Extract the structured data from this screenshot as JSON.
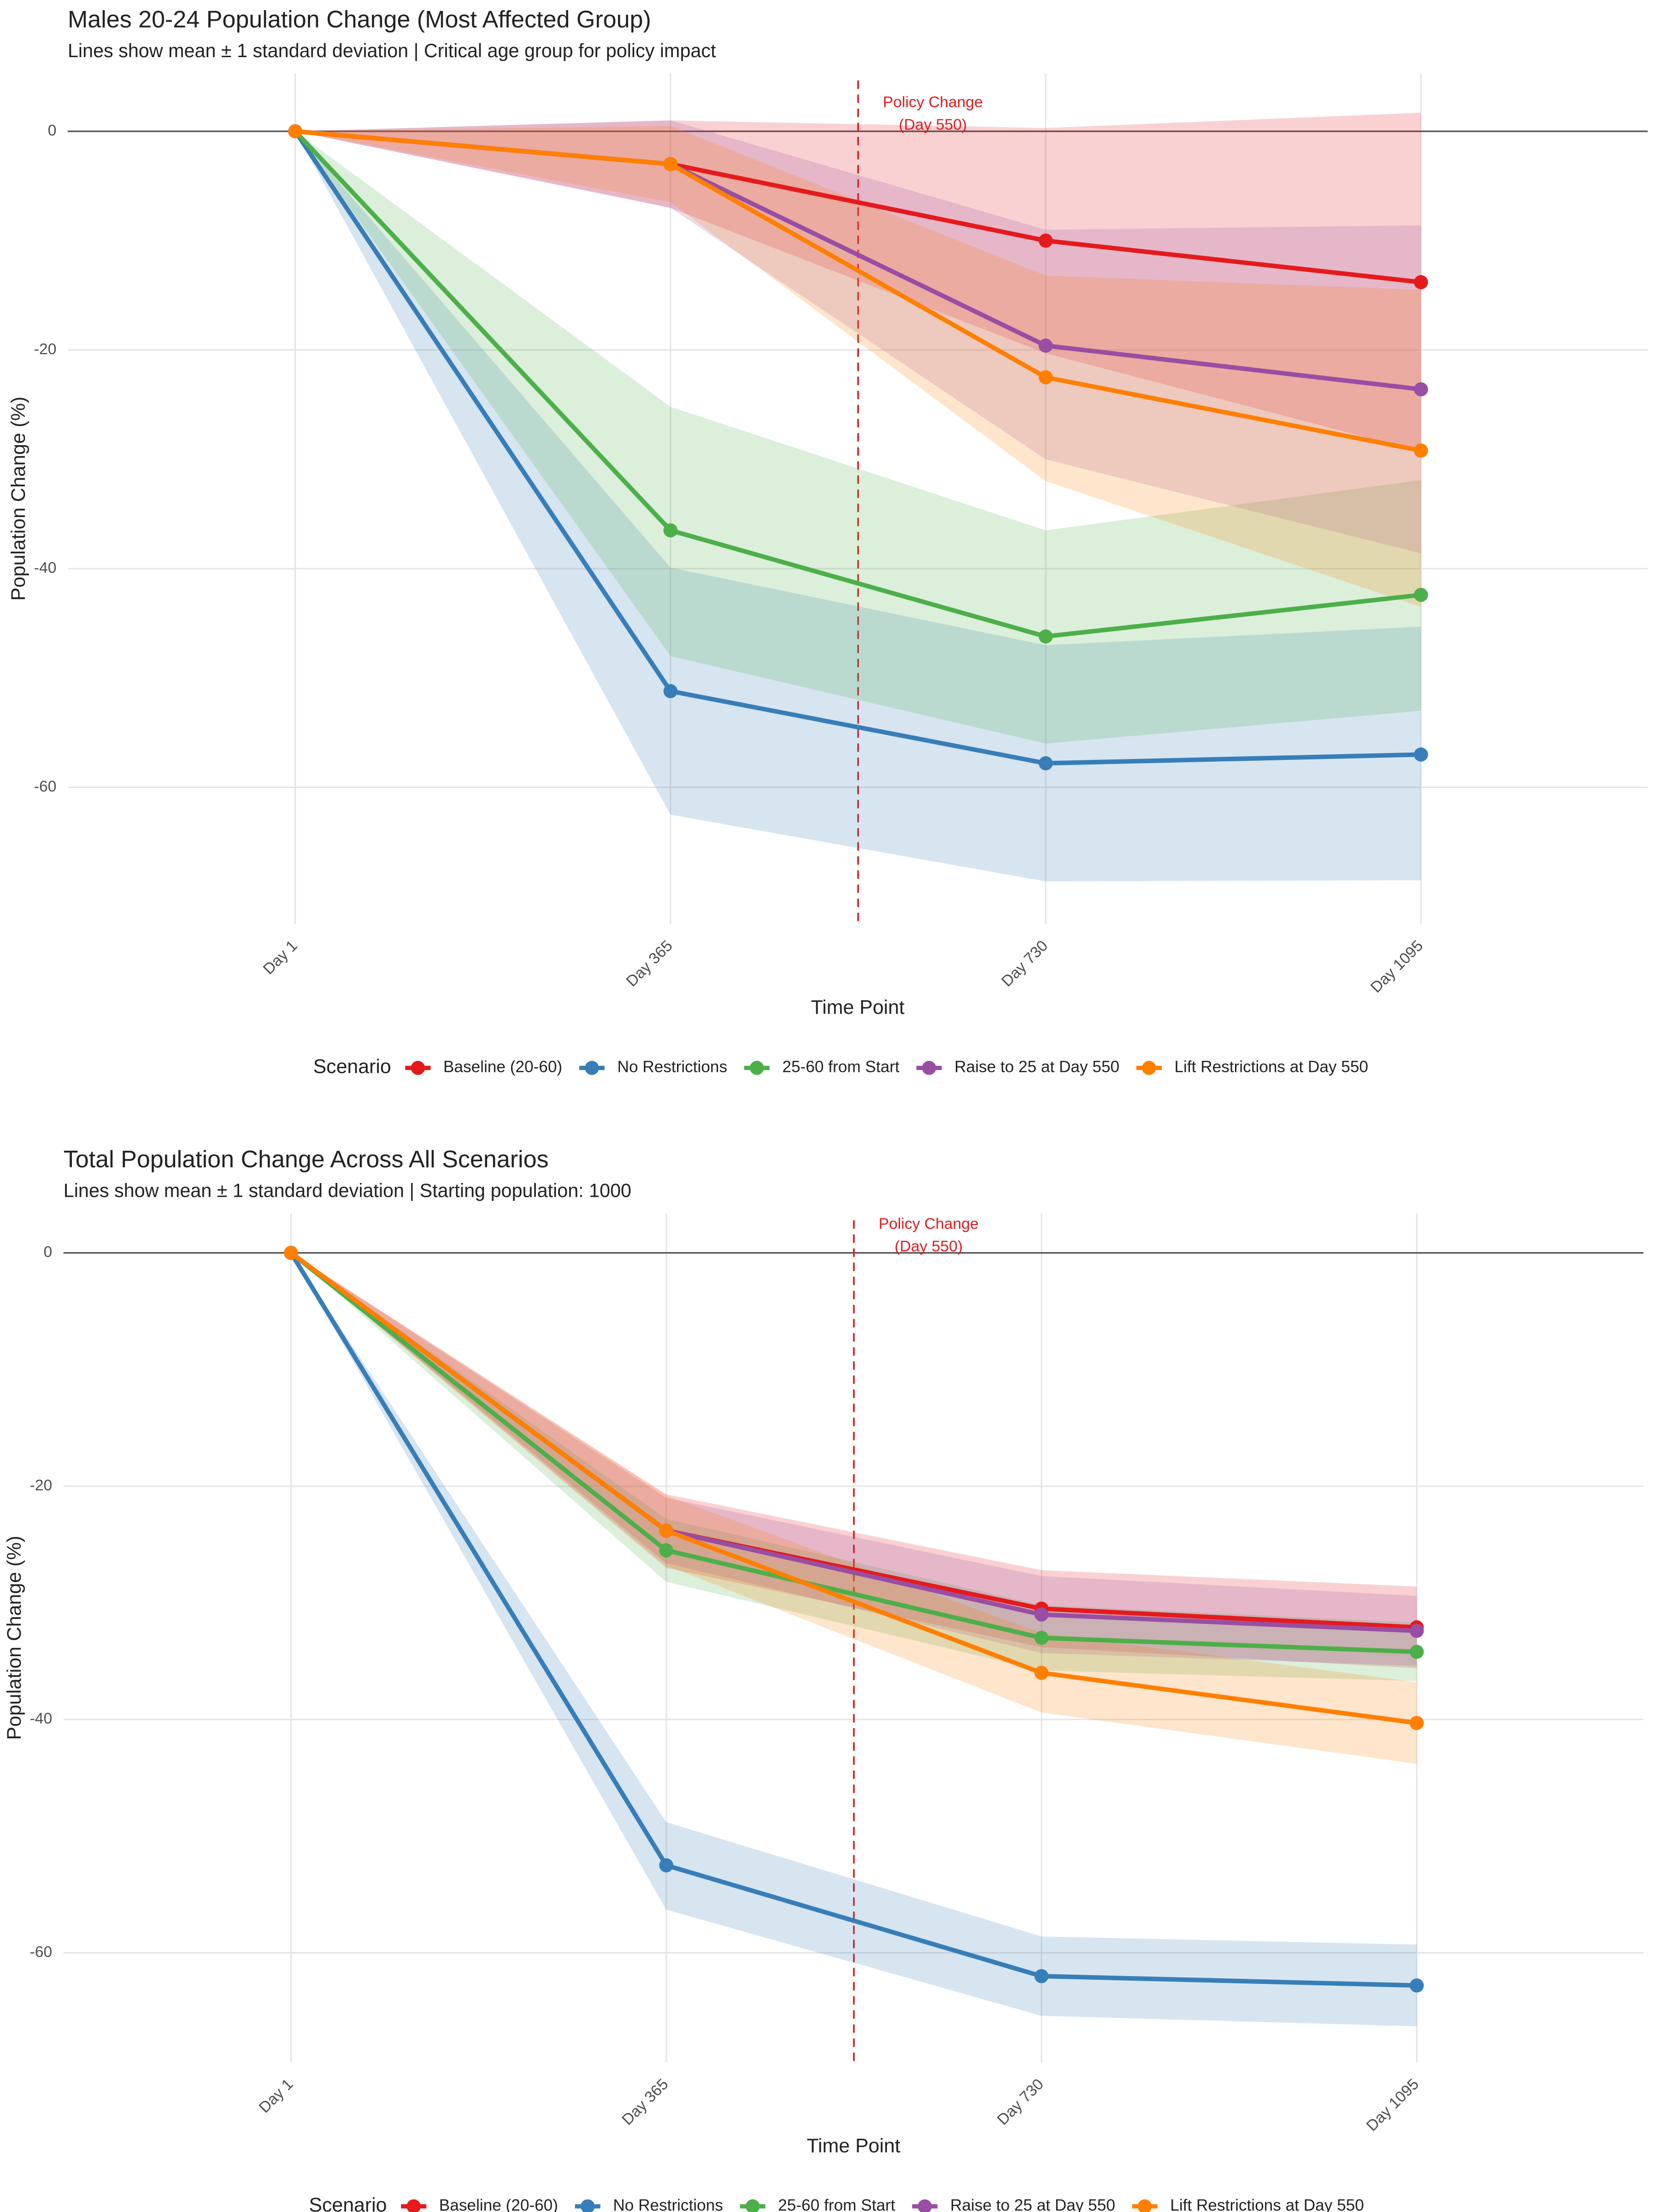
{
  "chart_data": [
    {
      "type": "line",
      "title": "Males 20-24 Population Change (Most Affected Group)",
      "subtitle": "Lines show mean ± 1 standard deviation | Critical age group for policy impact",
      "x_label": "Time Point",
      "y_label": "Population Change (%)",
      "categories": [
        "Day 1",
        "Day 365",
        "Day 730",
        "Day 1095"
      ],
      "ylim": [
        -72.5,
        5.3
      ],
      "yticks": [
        0,
        -20,
        -40,
        -60
      ],
      "grid": true,
      "hline": 0,
      "vline": {
        "x": 1.5,
        "color": "#e41a1c",
        "label": [
          "Policy Change",
          "(Day 550)"
        ]
      },
      "legend_title": "Scenario",
      "legend_position": "bottom",
      "series": [
        {
          "name": "Baseline (20-60)",
          "color": "#e41a1c",
          "values": [
            0,
            -3,
            -10,
            -13.8
          ],
          "lower": [
            0,
            -7,
            -20.3,
            -29.3
          ],
          "upper": [
            0,
            1,
            0.3,
            1.7
          ]
        },
        {
          "name": "No Restrictions",
          "color": "#377eb8",
          "values": [
            0,
            -51.2,
            -57.8,
            -57
          ],
          "lower": [
            0,
            -62.5,
            -68.6,
            -68.5
          ],
          "upper": [
            0,
            -39.9,
            -47,
            -45.3
          ]
        },
        {
          "name": "25-60 from Start",
          "color": "#4daf4a",
          "values": [
            0,
            -36.5,
            -46.2,
            -42.4
          ],
          "lower": [
            0,
            -48,
            -56,
            -53
          ],
          "upper": [
            0,
            -25.2,
            -36.5,
            -31.9
          ]
        },
        {
          "name": "Raise to 25 at Day 550",
          "color": "#984ea3",
          "values": [
            0,
            -3,
            -19.6,
            -23.6
          ],
          "lower": [
            0,
            -7,
            -30,
            -38.6
          ],
          "upper": [
            0,
            1,
            -9,
            -8.6
          ]
        },
        {
          "name": "Lift Restrictions at Day 550",
          "color": "#ff7f00",
          "values": [
            0,
            -3,
            -22.5,
            -29.2
          ],
          "lower": [
            0,
            -6.5,
            -32,
            -43.5
          ],
          "upper": [
            0,
            0.5,
            -13.2,
            -14.5
          ]
        }
      ]
    },
    {
      "type": "line",
      "title": "Total Population Change Across All Scenarios",
      "subtitle": "Lines show mean ± 1 standard deviation | Starting population: 1000",
      "x_label": "Time Point",
      "y_label": "Population Change (%)",
      "categories": [
        "Day 1",
        "Day 365",
        "Day 730",
        "Day 1095"
      ],
      "ylim": [
        -69.4,
        3.4
      ],
      "yticks": [
        0,
        -20,
        -40,
        -60
      ],
      "grid": true,
      "hline": 0,
      "vline": {
        "x": 1.5,
        "color": "#e41a1c",
        "label": [
          "Policy Change",
          "(Day 550)"
        ]
      },
      "legend_title": "Scenario",
      "legend_position": "bottom",
      "series": [
        {
          "name": "Baseline (20-60)",
          "color": "#e41a1c",
          "values": [
            0,
            -23.8,
            -30.5,
            -32.1
          ],
          "lower": [
            0,
            -27,
            -33.8,
            -35.6
          ],
          "upper": [
            0,
            -20.7,
            -27.2,
            -28.6
          ]
        },
        {
          "name": "No Restrictions",
          "color": "#377eb8",
          "values": [
            0,
            -52.5,
            -62,
            -62.8
          ],
          "lower": [
            0,
            -56.3,
            -65.4,
            -66.3
          ],
          "upper": [
            0,
            -48.8,
            -58.6,
            -59.3
          ]
        },
        {
          "name": "25-60 from Start",
          "color": "#4daf4a",
          "values": [
            0,
            -25.5,
            -33,
            -34.2
          ],
          "lower": [
            0,
            -28.2,
            -35.8,
            -36.7
          ],
          "upper": [
            0,
            -22.8,
            -30.2,
            -31.7
          ]
        },
        {
          "name": "Raise to 25 at Day 550",
          "color": "#984ea3",
          "values": [
            0,
            -23.8,
            -31,
            -32.4
          ],
          "lower": [
            0,
            -26.6,
            -34.3,
            -35.4
          ],
          "upper": [
            0,
            -21,
            -27.7,
            -29.4
          ]
        },
        {
          "name": "Lift Restrictions at Day 550",
          "color": "#ff7f00",
          "values": [
            0,
            -23.8,
            -36,
            -40.3
          ],
          "lower": [
            0,
            -26.8,
            -39.4,
            -43.8
          ],
          "upper": [
            0,
            -20.8,
            -32.6,
            -36.8
          ]
        }
      ]
    }
  ]
}
